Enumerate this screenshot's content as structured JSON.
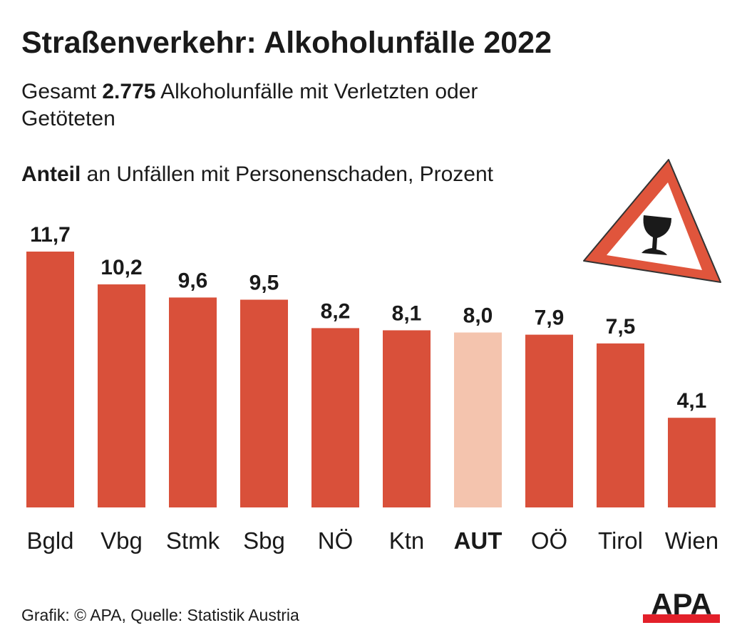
{
  "title": "Straßenverkehr: Alkoholunfälle 2022",
  "subtitle": {
    "prefix": "Gesamt ",
    "bold": "2.775",
    "suffix": " Alkoholunfälle mit Verletzten oder Getöteten"
  },
  "unit_label": {
    "bold": "Anteil",
    "rest": " an Unfällen mit Personenschaden, Prozent"
  },
  "source": "Grafik: © APA, Quelle: Statistik Austria",
  "logo": "APA",
  "icon": "warning-triangle-wine-glass-icon",
  "colors": {
    "bar": "#d9503a",
    "highlight": "#f4c4ae",
    "text": "#1a1a1a",
    "logo_red": "#e3202a"
  },
  "chart_data": {
    "type": "bar",
    "categories": [
      "Bgld",
      "Vbg",
      "Stmk",
      "Sbg",
      "NÖ",
      "Ktn",
      "AUT",
      "OÖ",
      "Tirol",
      "Wien"
    ],
    "values": [
      11.7,
      10.2,
      9.6,
      9.5,
      8.2,
      8.1,
      8.0,
      7.9,
      7.5,
      4.1
    ],
    "data_labels": [
      "11,7",
      "10,2",
      "9,6",
      "9,5",
      "8,2",
      "8,1",
      "8,0",
      "7,9",
      "7,5",
      "4,1"
    ],
    "highlight": "AUT",
    "ylim": [
      0,
      11.7
    ],
    "grid": false
  }
}
